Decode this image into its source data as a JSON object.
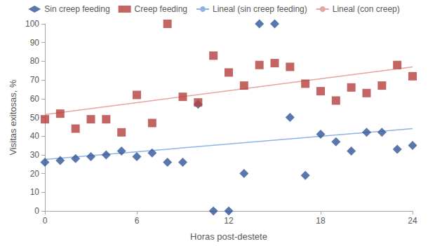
{
  "chart_data": {
    "type": "scatter",
    "x_label": "Horas post-destete",
    "y_label": "Visitas exitosas, %",
    "xlim": [
      0,
      24
    ],
    "xticks": [
      0,
      6,
      12,
      18,
      24
    ],
    "ylim": [
      0,
      100
    ],
    "yticks": [
      0,
      10,
      20,
      30,
      40,
      50,
      60,
      70,
      80,
      90,
      100
    ],
    "grid": false,
    "legend": "top",
    "series": [
      {
        "name": "Sin creep feeding",
        "type": "scatter",
        "marker": "diamond",
        "color": "#2f5597",
        "x": [
          0,
          1,
          2,
          3,
          4,
          5,
          6,
          7,
          8,
          9,
          10,
          11,
          12,
          13,
          14,
          15,
          16,
          17,
          18,
          19,
          20,
          21,
          22,
          23,
          24
        ],
        "values": [
          26,
          27,
          28,
          29,
          30,
          32,
          29,
          31,
          26,
          26,
          57,
          0,
          0,
          20,
          100,
          100,
          50,
          19,
          41,
          37,
          32,
          42,
          42,
          33,
          35
        ]
      },
      {
        "name": "Creep feeding",
        "type": "scatter",
        "marker": "square",
        "color": "#b4403c",
        "x": [
          0,
          1,
          2,
          3,
          4,
          5,
          6,
          7,
          8,
          9,
          10,
          11,
          12,
          13,
          14,
          15,
          16,
          17,
          18,
          19,
          20,
          21,
          22,
          23,
          24
        ],
        "values": [
          49,
          52,
          44,
          49,
          49,
          42,
          62,
          47,
          100,
          61,
          58,
          83,
          74,
          67,
          78,
          79,
          77,
          68,
          64,
          59,
          66,
          63,
          67,
          78,
          72
        ]
      },
      {
        "name": "Lineal (sin creep feeding)",
        "type": "line",
        "line_style": "solid",
        "color": "#8eb4e3",
        "x": [
          0,
          24
        ],
        "values": [
          27.5,
          44
        ]
      },
      {
        "name": "Lineal (con creep)",
        "type": "line",
        "line_style": "solid",
        "color": "#e6a3a1",
        "x": [
          0,
          24
        ],
        "values": [
          51.5,
          77
        ]
      }
    ]
  }
}
